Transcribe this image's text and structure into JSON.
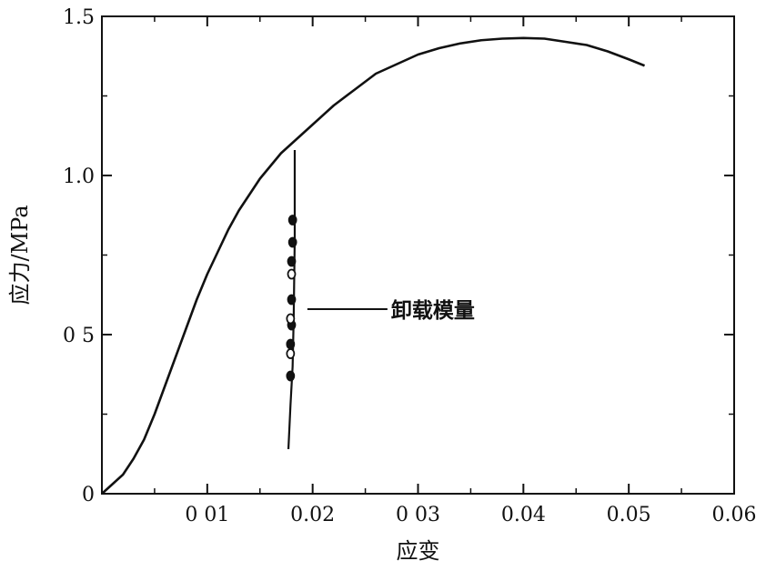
{
  "chart_data": {
    "type": "line",
    "xlabel": "应变",
    "ylabel": "应力/MPa",
    "xlim": [
      0,
      0.06
    ],
    "ylim": [
      0,
      1.5
    ],
    "x_ticks": [
      {
        "value": 0.01,
        "label": "0 01"
      },
      {
        "value": 0.02,
        "label": "0.02"
      },
      {
        "value": 0.03,
        "label": "0 03"
      },
      {
        "value": 0.04,
        "label": "0.04"
      },
      {
        "value": 0.05,
        "label": "0.05"
      },
      {
        "value": 0.06,
        "label": "0.06"
      }
    ],
    "y_ticks": [
      {
        "value": 0,
        "label": "0"
      },
      {
        "value": 0.5,
        "label": "0 5"
      },
      {
        "value": 1.0,
        "label": "1.0"
      },
      {
        "value": 1.5,
        "label": "1.5"
      }
    ],
    "grid": false,
    "legend": "none",
    "series": [
      {
        "type": "line",
        "x": [
          0.0,
          0.001,
          0.002,
          0.003,
          0.004,
          0.005,
          0.006,
          0.007,
          0.008,
          0.009,
          0.01,
          0.011,
          0.012,
          0.013,
          0.014,
          0.015,
          0.016,
          0.017,
          0.018,
          0.02,
          0.022,
          0.024,
          0.026,
          0.028,
          0.03,
          0.032,
          0.034,
          0.036,
          0.038,
          0.04,
          0.042,
          0.044,
          0.046,
          0.048,
          0.05,
          0.0515
        ],
        "y": [
          0.0,
          0.03,
          0.06,
          0.11,
          0.17,
          0.25,
          0.34,
          0.43,
          0.52,
          0.61,
          0.69,
          0.76,
          0.83,
          0.89,
          0.94,
          0.99,
          1.03,
          1.07,
          1.1,
          1.16,
          1.22,
          1.27,
          1.32,
          1.35,
          1.38,
          1.4,
          1.415,
          1.425,
          1.43,
          1.432,
          1.43,
          1.42,
          1.41,
          1.39,
          1.365,
          1.345
        ]
      },
      {
        "type": "line",
        "x": [
          0.0183,
          0.0183,
          0.0182,
          0.0181,
          0.0179,
          0.0177
        ],
        "y": [
          1.08,
          0.8,
          0.55,
          0.4,
          0.28,
          0.14
        ]
      },
      {
        "type": "scatter",
        "marker": "filled",
        "x": [
          0.0181,
          0.0181,
          0.018,
          0.018,
          0.018,
          0.0179,
          0.0179
        ],
        "y": [
          0.86,
          0.79,
          0.73,
          0.61,
          0.53,
          0.47,
          0.37
        ]
      },
      {
        "type": "scatter",
        "marker": "hollow",
        "x": [
          0.018,
          0.0179,
          0.0179
        ],
        "y": [
          0.69,
          0.55,
          0.44
        ]
      }
    ],
    "annotations": [
      {
        "text": "卸载模量",
        "x": 0.0195,
        "y": 0.58
      }
    ]
  }
}
